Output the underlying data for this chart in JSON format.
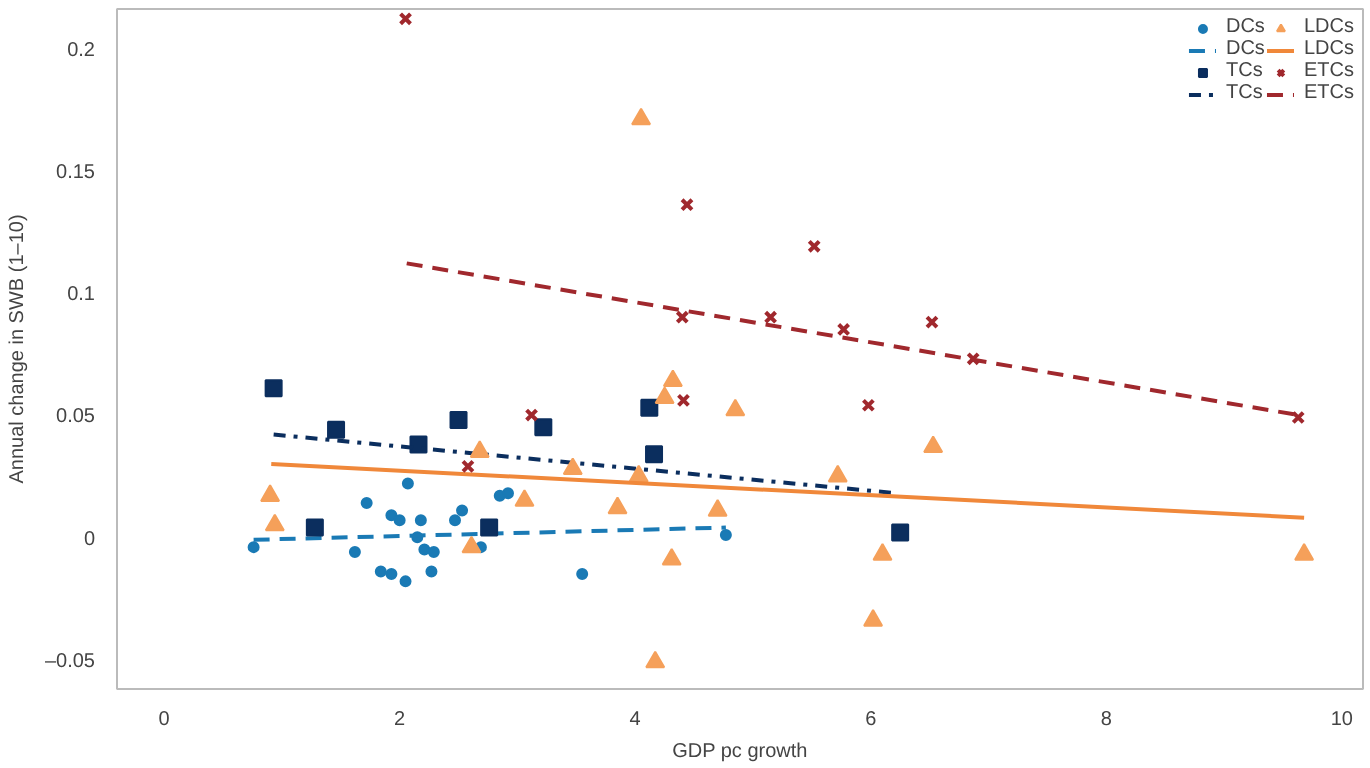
{
  "chart_data": {
    "type": "scatter",
    "xlabel": "GDP pc growth",
    "ylabel": "Annual change in SWB (1–10)",
    "xlim": [
      -0.4,
      10.18
    ],
    "ylim": [
      -0.061,
      0.217
    ],
    "xticks": [
      0,
      2,
      4,
      6,
      8,
      10
    ],
    "yticks": [
      {
        "value": -0.05,
        "label": "–0.05"
      },
      0,
      0.05,
      0.1,
      0.15,
      0.2
    ],
    "grid": false,
    "legend": "top right",
    "series": [
      {
        "name": "DCs",
        "marker": "circle",
        "color": "#1a7ab5",
        "x": [
          0.76,
          1.62,
          1.72,
          1.84,
          1.93,
          1.93,
          2.0,
          2.05,
          2.07,
          2.15,
          2.18,
          2.21,
          2.27,
          2.29,
          2.47,
          2.53,
          2.69,
          2.85,
          2.92,
          3.55,
          4.77
        ],
        "values": [
          -0.003,
          -0.005,
          0.015,
          -0.013,
          0.01,
          -0.014,
          0.008,
          -0.017,
          0.023,
          0.001,
          0.008,
          -0.004,
          -0.013,
          -0.005,
          0.008,
          0.012,
          -0.003,
          0.018,
          0.019,
          -0.014,
          0.002
        ]
      },
      {
        "name": "DCs",
        "type": "line",
        "line_style": "dashed",
        "color": "#1a7ab5",
        "x": [
          0.76,
          4.77
        ],
        "values": [
          0.0,
          0.005
        ]
      },
      {
        "name": "TCs",
        "marker": "square",
        "color": "#0b2e5e",
        "x": [
          0.93,
          1.28,
          1.46,
          2.16,
          2.5,
          2.76,
          3.22,
          4.12,
          4.16,
          6.25
        ],
        "values": [
          0.062,
          0.005,
          0.045,
          0.039,
          0.049,
          0.005,
          0.046,
          0.054,
          0.035,
          0.003
        ]
      },
      {
        "name": "TCs",
        "type": "line",
        "line_style": "dashdot",
        "color": "#0b2e5e",
        "x": [
          0.93,
          6.23
        ],
        "values": [
          0.043,
          0.019
        ]
      },
      {
        "name": "LDCs",
        "marker": "triangle",
        "color": "#f5a05a",
        "x": [
          0.9,
          0.94,
          2.61,
          2.68,
          3.06,
          3.47,
          3.85,
          4.03,
          4.05,
          4.17,
          4.25,
          4.31,
          4.32,
          4.7,
          4.85,
          5.72,
          6.02,
          6.1,
          6.53,
          9.68
        ],
        "values": [
          0.018,
          0.006,
          -0.003,
          0.036,
          0.016,
          0.029,
          0.013,
          0.026,
          0.172,
          -0.05,
          0.058,
          -0.008,
          0.065,
          0.012,
          0.053,
          0.026,
          -0.033,
          -0.006,
          0.038,
          -0.006
        ]
      },
      {
        "name": "LDCs",
        "type": "line",
        "line_style": "solid",
        "color": "#f0883a",
        "x": [
          0.91,
          9.68
        ],
        "values": [
          0.031,
          0.009
        ]
      },
      {
        "name": "ETCs",
        "marker": "cross",
        "color": "#a0282d",
        "x": [
          2.05,
          2.58,
          3.12,
          4.4,
          4.41,
          4.44,
          5.15,
          5.52,
          5.77,
          5.98,
          6.52,
          6.87,
          9.63
        ],
        "values": [
          0.213,
          0.03,
          0.051,
          0.091,
          0.057,
          0.137,
          0.091,
          0.12,
          0.086,
          0.055,
          0.089,
          0.074,
          0.05
        ]
      },
      {
        "name": "ETCs",
        "type": "line",
        "line_style": "dashed",
        "color": "#a0282d",
        "x": [
          2.06,
          9.63
        ],
        "values": [
          0.113,
          0.051
        ]
      }
    ]
  }
}
